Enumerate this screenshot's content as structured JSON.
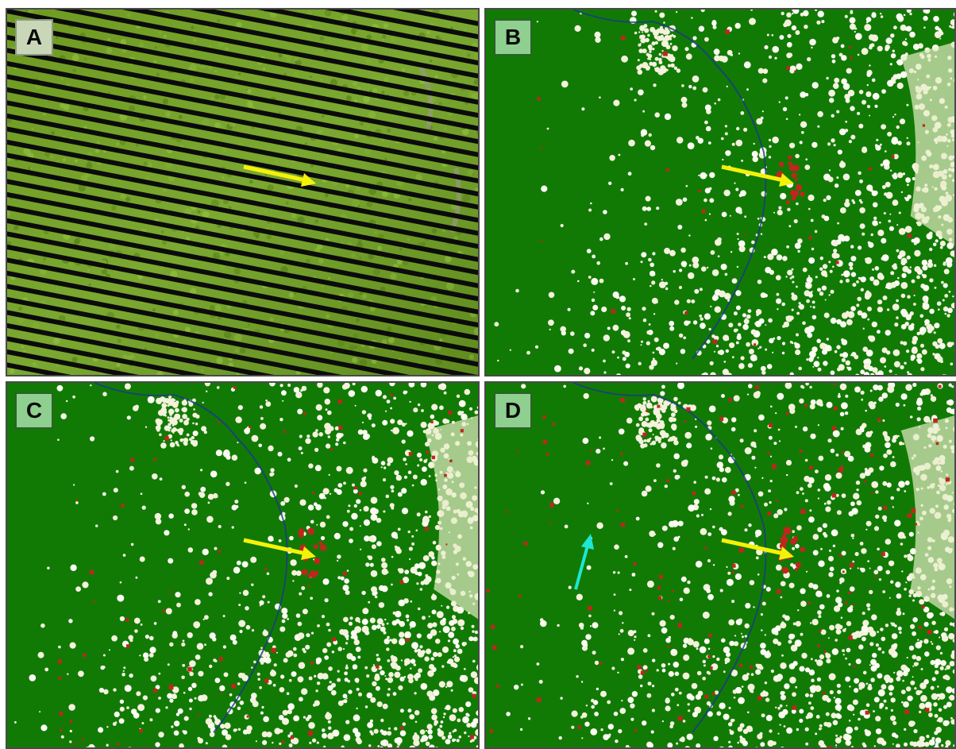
{
  "panels": [
    {
      "id": "A",
      "label": "A",
      "kind": "raw-striped-satellite-image"
    },
    {
      "id": "B",
      "label": "B",
      "kind": "forest-classification-map"
    },
    {
      "id": "C",
      "label": "C",
      "kind": "forest-classification-map"
    },
    {
      "id": "D",
      "label": "D",
      "kind": "forest-classification-map"
    }
  ],
  "colors": {
    "forest": "#117a05",
    "non_forest": "#f4f2dc",
    "change": "#c0261d",
    "water": "#1a3a8a",
    "arrow_primary": "#f5f20a",
    "arrow_secondary": "#1fe6d6",
    "stripe": "#0b0b0b"
  },
  "icons": {
    "yellow_arrow": "arrow-right-icon",
    "cyan_arrow": "arrow-up-icon"
  }
}
